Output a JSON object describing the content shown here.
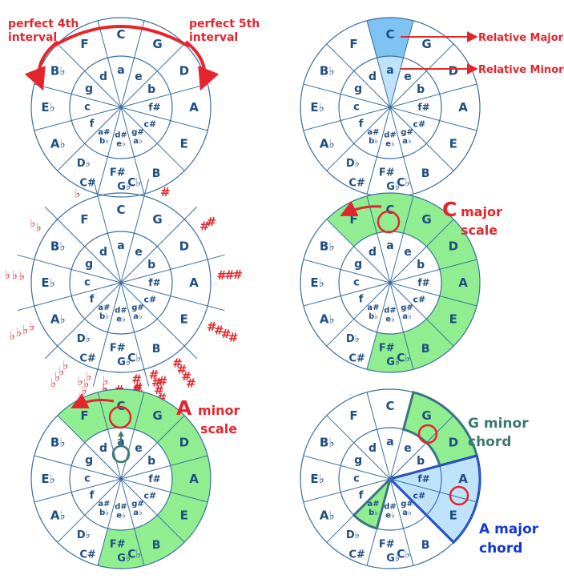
{
  "colors": {
    "ring": "#3a6ea0",
    "text": "#1f4e82",
    "red": "#e3262d",
    "green": "#90ee90",
    "light_blue": "#bfe3fb",
    "mid_blue": "#7ec3f1",
    "teal": "#3d7a6e",
    "blue": "#1238d6"
  },
  "outer_labels": [
    "C",
    "G",
    "D",
    "A",
    "E",
    "B",
    "C♭",
    "F#",
    "C#",
    "A♭",
    "E♭",
    "B♭",
    "F"
  ],
  "outer_extra": {
    "B_lower": "B",
    "Cb": "C♭",
    "Gb": "G♭",
    "Fs": "F#",
    "Cs": "C#",
    "Db": "D♭"
  },
  "inner_labels": {
    "a": "a",
    "e": "e",
    "b": "b",
    "fs": "f#",
    "cs": "c#",
    "gs": "g#",
    "ab": "a♭",
    "ds": "d#",
    "eb": "e♭",
    "as": "a#",
    "bb": "b♭",
    "f": "f",
    "c": "c",
    "g": "g",
    "d": "d"
  },
  "panel1": {
    "left_annotation": [
      "perfect 4th",
      "interval"
    ],
    "right_annotation": [
      "perfect 5th",
      "interval"
    ]
  },
  "panel2": {
    "relative_major": "Relative Major",
    "relative_minor": "Relative Minor"
  },
  "panel3": {
    "flat_symbol": "♭",
    "sharp_symbol": "#"
  },
  "panel4": {
    "title_big": "C",
    "title_rest": "major",
    "title_line2": "scale"
  },
  "panel5": {
    "title_big": "A",
    "title_rest": "minor",
    "title_line2": "scale"
  },
  "panel6": {
    "gminor_line1": "G minor",
    "gminor_line2": "chord",
    "amajor_line1": "A major",
    "amajor_line2": "chord"
  }
}
